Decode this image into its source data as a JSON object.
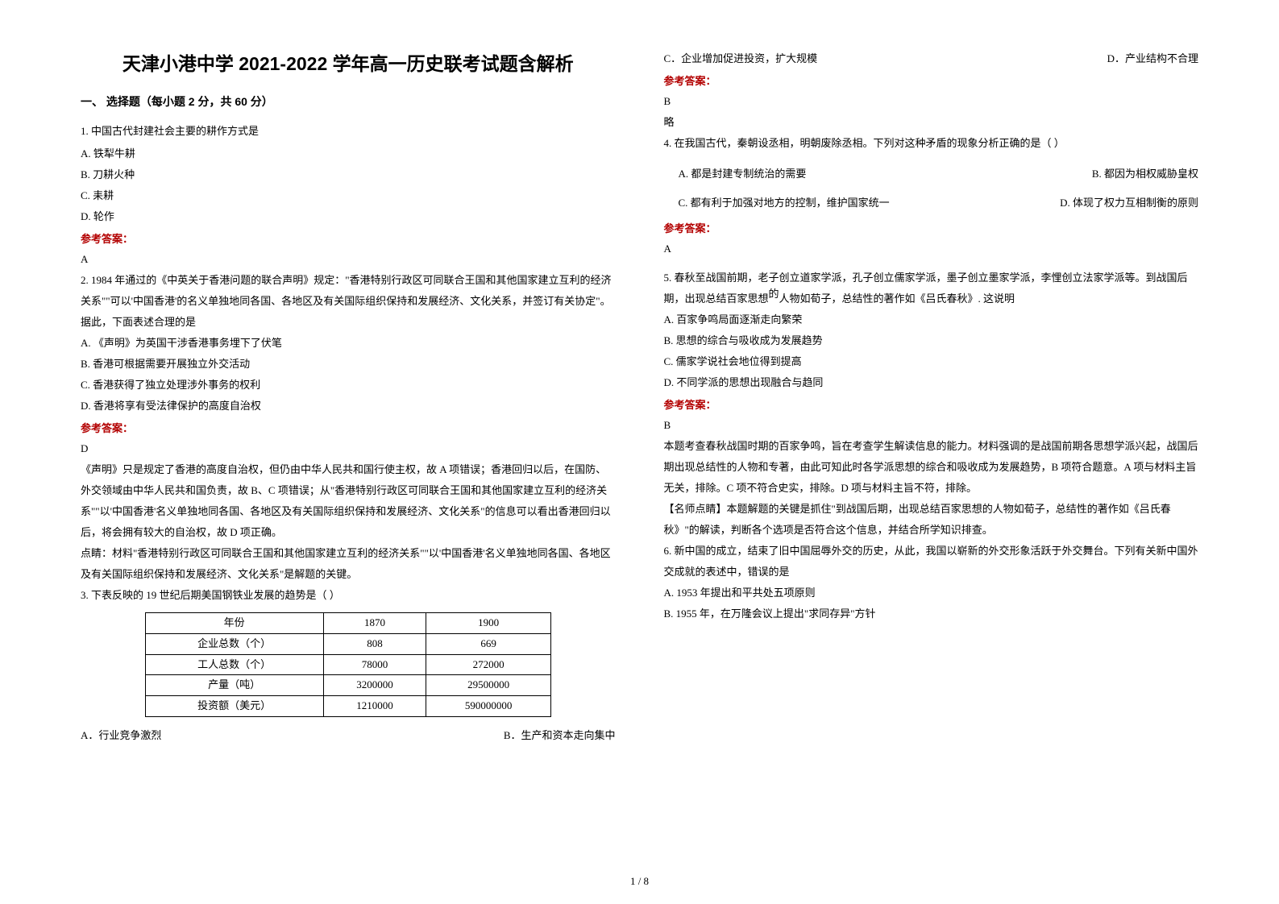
{
  "title": "天津小港中学 2021-2022 学年高一历史联考试题含解析",
  "section_header": "一、 选择题（每小题 2 分，共 60 分）",
  "answer_label": "参考答案：",
  "q1": {
    "stem": "1. 中国古代封建社会主要的耕作方式是",
    "a": "A. 铁犁牛耕",
    "b": "B. 刀耕火种",
    "c": "C. 耒耕",
    "d": "D. 轮作",
    "answer": "A"
  },
  "q2": {
    "stem": "2. 1984 年通过的《中英关于香港问题的联合声明》规定：\"香港特别行政区可同联合王国和其他国家建立互利的经济关系\"\"可以'中国香港'的名义单独地同各国、各地区及有关国际组织保持和发展经济、文化关系，并签订有关协定\"。据此，下面表述合理的是",
    "a": "A. 《声明》为英国干涉香港事务埋下了伏笔",
    "b": "B. 香港可根据需要开展独立外交活动",
    "c": "C. 香港获得了独立处理涉外事务的权利",
    "d": "D. 香港将享有受法律保护的高度自治权",
    "answer": "D",
    "exp1": "《声明》只是规定了香港的高度自治权，但仍由中华人民共和国行使主权，故 A 项错误；香港回归以后，在国防、外交领域由中华人民共和国负责，故 B、C 项错误；从\"香港特别行政区可同联合王国和其他国家建立互利的经济关系\"\"以'中国香港'名义单独地同各国、各地区及有关国际组织保持和发展经济、文化关系\"的信息可以看出香港回归以后，将会拥有较大的自治权，故 D 项正确。",
    "exp2": "点睛：材料\"香港特别行政区可同联合王国和其他国家建立互利的经济关系\"\"以'中国香港'名义单独地同各国、各地区及有关国际组织保持和发展经济、文化关系\"是解题的关键。"
  },
  "q3": {
    "stem": "3. 下表反映的 19 世纪后期美国钢铁业发展的趋势是（   ）",
    "table": {
      "columns": [
        "年份",
        "1870",
        "1900"
      ],
      "rows": [
        [
          "企业总数（个）",
          "808",
          "669"
        ],
        [
          "工人总数（个）",
          "78000",
          "272000"
        ],
        [
          "产量（吨）",
          "3200000",
          "29500000"
        ],
        [
          "投资额（美元）",
          "1210000",
          "590000000"
        ]
      ]
    },
    "a": "A．行业竞争激烈",
    "b": "B．生产和资本走向集中",
    "c": "C．企业增加促进投资，扩大规模",
    "d": "D．产业结构不合理",
    "answer": "B",
    "extra": "略"
  },
  "q4": {
    "stem": "4. 在我国古代，秦朝设丞相，明朝废除丞相。下列对这种矛盾的现象分析正确的是（   ）",
    "a": "A. 都是封建专制统治的需要",
    "b": "B. 都因为相权威胁皇权",
    "c": "C. 都有利于加强对地方的控制，维护国家统一",
    "d": "D. 体现了权力互相制衡的原则",
    "answer": "A"
  },
  "q5": {
    "stem_pre": "5. 春秋至战国前期，老子创立道家学派，孔子创立儒家学派，墨子创立墨家学派，李悝创立法家学派等。到战国后期，出现总结百家思想",
    "stem_de": "的",
    "stem_post": "人物如荀子，总结性的著作如《吕氏春秋》. 这说明",
    "a": "A. 百家争鸣局面逐渐走向繁荣",
    "b": "B. 思想的综合与吸收成为发展趋势",
    "c": "C. 儒家学说社会地位得到提高",
    "d": "D. 不同学派的思想出现融合与趋同",
    "answer": "B",
    "exp1": "本题考查春秋战国时期的百家争鸣，旨在考查学生解读信息的能力。材料强调的是战国前期各思想学派兴起，战国后期出现总结性的人物和专著，由此可知此时各学派思想的综合和吸收成为发展趋势，B 项符合题意。A 项与材料主旨无关，排除。C 项不符合史实，排除。D 项与材料主旨不符，排除。",
    "exp2": "【名师点睛】本题解题的关键是抓住\"到战国后期，出现总结百家思想的人物如荀子，总结性的著作如《吕氏春秋》\"的解读，判断各个选项是否符合这个信息，并结合所学知识排查。"
  },
  "q6": {
    "stem": "6. 新中国的成立，结束了旧中国屈辱外交的历史，从此，我国以崭新的外交形象活跃于外交舞台。下列有关新中国外交成就的表述中，错误的是",
    "a": "A. 1953 年提出和平共处五项原则",
    "b": "B. 1955 年，在万隆会议上提出\"求同存异\"方针"
  },
  "page_number": "1 / 8"
}
